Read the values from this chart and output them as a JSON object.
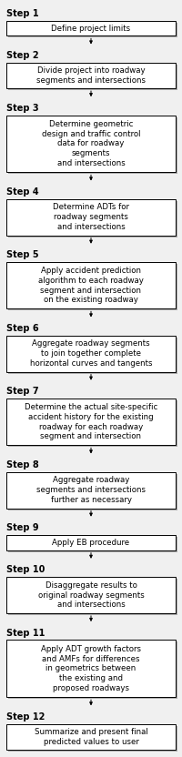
{
  "steps": [
    {
      "label": "Step 1",
      "text": "Define project limits",
      "lines": 1
    },
    {
      "label": "Step 2",
      "text": "Divide project into roadway\nsegments and intersections",
      "lines": 2
    },
    {
      "label": "Step 3",
      "text": "Determine geometric\ndesign and traffic control\ndata for roadway\nsegments\nand intersections",
      "lines": 5
    },
    {
      "label": "Step 4",
      "text": "Determine ADTs for\nroadway segments\nand intersections",
      "lines": 3
    },
    {
      "label": "Step 5",
      "text": "Apply accident prediction\nalgorithm to each roadway\nsegment and intersection\non the existing roadway",
      "lines": 4
    },
    {
      "label": "Step 6",
      "text": "Aggregate roadway segments\nto join together complete\nhorizontal curves and tangents",
      "lines": 3
    },
    {
      "label": "Step 7",
      "text": "Determine the actual site-specific\naccident history for the existing\nroadway for each roadway\nsegment and intersection",
      "lines": 4
    },
    {
      "label": "Step 8",
      "text": "Aggregate roadway\nsegments and intersections\nfurther as necessary",
      "lines": 3
    },
    {
      "label": "Step 9",
      "text": "Apply EB procedure",
      "lines": 1
    },
    {
      "label": "Step 10",
      "text": "Disaggregate results to\noriginal roadway segments\nand intersections",
      "lines": 3
    },
    {
      "label": "Step 11",
      "text": "Apply ADT growth factors\nand AMFs for differences\nin geometrics between\nthe existing and\nproposed roadways",
      "lines": 5
    },
    {
      "label": "Step 12",
      "text": "Summarize and present final\npredicted values to user",
      "lines": 2
    }
  ],
  "bg_color": "#f0f0f0",
  "box_facecolor": "#ffffff",
  "box_edgecolor": "#000000",
  "shadow_color": "#aaaaaa",
  "text_color": "#000000",
  "label_color": "#000000",
  "arrow_color": "#000000",
  "font_size": 6.2,
  "label_font_size": 7.0,
  "fig_width": 2.0,
  "fig_height": 8.32,
  "dpi": 100
}
